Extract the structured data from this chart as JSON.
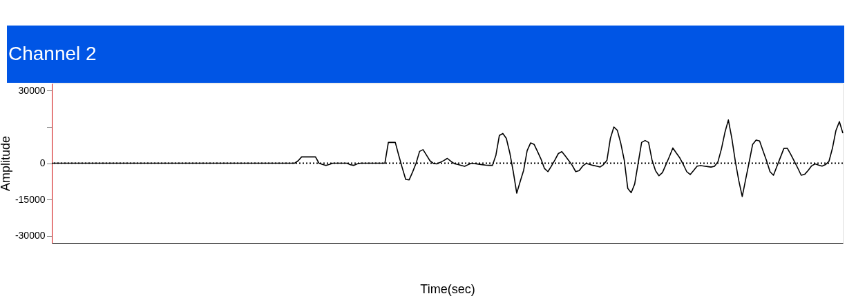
{
  "chart_data": {
    "type": "line",
    "title": "Channel 2",
    "xlabel": "Time(sec)",
    "ylabel": "Amplitude",
    "categories": [
      null,
      null,
      null,
      null,
      null,
      null,
      null,
      null,
      null,
      null,
      null,
      null,
      null,
      null,
      null,
      null,
      null,
      null,
      null,
      null,
      null,
      null,
      null,
      null,
      null,
      null,
      null,
      null,
      null,
      null,
      null,
      null,
      null,
      null,
      null,
      null,
      null,
      null,
      null,
      null,
      null,
      null,
      null,
      null,
      null,
      null,
      null,
      null,
      null,
      null,
      null,
      null,
      null,
      null,
      null,
      null,
      null,
      null,
      null,
      null,
      null,
      null,
      null,
      null,
      null,
      null,
      null,
      null,
      null,
      null,
      null,
      null,
      null,
      null,
      null,
      null,
      null,
      null,
      null,
      null,
      null,
      null,
      null,
      null,
      null,
      null,
      null,
      null,
      null,
      null,
      null,
      null,
      null,
      null,
      null,
      null,
      null,
      null,
      null,
      null,
      null,
      null,
      null,
      null,
      null,
      null,
      null,
      null,
      null,
      null,
      null,
      null,
      null,
      null,
      null,
      null,
      null,
      null,
      null,
      null,
      null,
      null,
      null,
      null,
      null,
      null,
      null,
      null,
      null,
      null,
      null,
      null,
      null,
      null,
      null,
      null,
      null,
      null,
      null,
      null,
      null,
      null,
      null,
      null,
      null,
      null,
      null,
      null,
      null,
      null,
      null,
      null,
      null,
      null,
      null,
      null,
      null,
      null,
      null,
      null,
      null,
      null,
      null,
      null,
      null,
      null,
      null,
      null,
      null,
      null,
      null,
      null,
      null,
      null,
      null,
      null,
      null,
      null,
      null,
      null,
      null,
      null,
      null,
      null,
      null,
      null,
      null,
      null,
      null,
      null,
      null,
      null,
      null,
      null,
      null,
      null,
      null,
      null,
      null,
      null,
      null,
      null,
      null,
      null,
      null,
      null,
      null,
      null,
      null,
      null,
      null,
      null,
      null,
      null,
      null,
      null,
      null,
      null,
      null,
      null,
      null,
      null,
      null,
      null,
      null,
      null,
      null,
      null,
      null
    ],
    "series": [
      {
        "color": "#000000",
        "values": [
          0,
          0,
          0,
          0,
          0,
          0,
          0,
          0,
          0,
          0,
          0,
          0,
          0,
          0,
          0,
          0,
          0,
          0,
          0,
          0,
          0,
          0,
          0,
          0,
          0,
          0,
          0,
          0,
          0,
          0,
          0,
          0,
          0,
          0,
          0,
          0,
          0,
          0,
          0,
          0,
          0,
          0,
          0,
          0,
          0,
          0,
          0,
          0,
          0,
          0,
          0,
          0,
          0,
          0,
          0,
          0,
          0,
          0,
          0,
          0,
          0,
          0,
          0,
          0,
          0,
          0,
          0,
          0,
          0,
          0,
          0,
          1000,
          2600,
          2600,
          2600,
          2600,
          2600,
          0,
          -500,
          -900,
          -500,
          0,
          0,
          0,
          0,
          0,
          -600,
          -900,
          -300,
          0,
          0,
          0,
          0,
          0,
          0,
          0,
          0,
          8600,
          8600,
          8600,
          3200,
          -1900,
          -6700,
          -6900,
          -3600,
          0,
          4900,
          5600,
          3300,
          1000,
          -100,
          -300,
          400,
          1100,
          2000,
          800,
          -200,
          -500,
          -900,
          -1300,
          -600,
          0,
          -200,
          -400,
          -600,
          -800,
          -900,
          -900,
          3300,
          11500,
          12300,
          10300,
          4300,
          -3500,
          -12400,
          -7600,
          -2900,
          5200,
          8400,
          7800,
          4800,
          1700,
          -2200,
          -3500,
          -1200,
          1300,
          4000,
          4800,
          3000,
          1100,
          -900,
          -3500,
          -3100,
          -1200,
          -100,
          -500,
          -900,
          -1200,
          -1600,
          -600,
          1200,
          10300,
          15000,
          13600,
          8200,
          1200,
          -10400,
          -12200,
          -8600,
          0,
          8600,
          9400,
          8600,
          1300,
          -3100,
          -5200,
          -3900,
          -600,
          2700,
          6300,
          4200,
          2200,
          -500,
          -3500,
          -4700,
          -3000,
          -1200,
          -1000,
          -1200,
          -1400,
          -1600,
          -1300,
          600,
          5900,
          12700,
          17900,
          10300,
          800,
          -7200,
          -13800,
          -6600,
          500,
          7800,
          9600,
          9200,
          5100,
          1100,
          -3500,
          -5000,
          -1300,
          2400,
          6100,
          6200,
          3600,
          800,
          -2000,
          -5000,
          -4600,
          -3000,
          -1100,
          -300,
          -800,
          -1200,
          -600,
          800,
          6200,
          13500,
          17200,
          12400
        ]
      }
    ],
    "ylim": [
      -33000,
      33000
    ],
    "yticks": [
      30000,
      {
        "value": 15000,
        "label": null
      },
      0,
      -15000,
      -30000
    ],
    "ref_lines": [
      {
        "axis": "y",
        "value": 0,
        "line_style": "dotted"
      }
    ],
    "tick_labels": "y",
    "grid": false,
    "marker": "none",
    "line_style": "solid"
  }
}
